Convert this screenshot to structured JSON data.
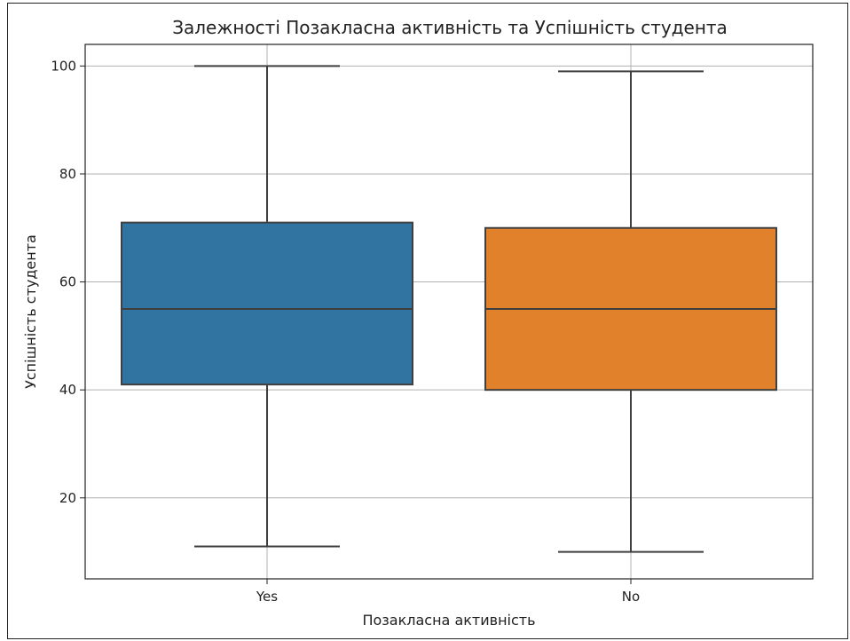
{
  "chart_data": {
    "type": "box",
    "title": "Залежності Позакласна активність та Успішність студента",
    "xlabel": "Позакласна активність",
    "ylabel": "Успішність студента",
    "categories": [
      "Yes",
      "No"
    ],
    "ylim": [
      5,
      104
    ],
    "yticks": [
      20,
      40,
      60,
      80,
      100
    ],
    "grid": true,
    "series": [
      {
        "category": "Yes",
        "whisker_low": 11,
        "q1": 41,
        "median": 55,
        "q3": 71,
        "whisker_high": 100,
        "color": "#3274a1"
      },
      {
        "category": "No",
        "whisker_low": 10,
        "q1": 40,
        "median": 55,
        "q3": 70,
        "whisker_high": 99,
        "color": "#e1812c"
      }
    ]
  }
}
